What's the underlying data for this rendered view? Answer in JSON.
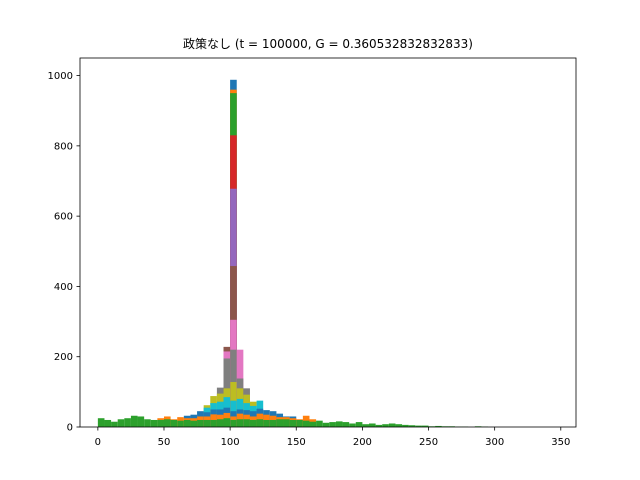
{
  "chart_data": {
    "type": "bar",
    "title": "政策なし (t = 100000, G = 0.360532832832833)",
    "xlabel": "",
    "ylabel": "",
    "xlim": [
      -13.5,
      361.5
    ],
    "ylim": [
      0,
      1050
    ],
    "xticks": [
      0,
      50,
      100,
      150,
      200,
      250,
      300,
      350
    ],
    "yticks": [
      0,
      200,
      400,
      600,
      800,
      1000
    ],
    "grid": false,
    "legend": "none",
    "bin_width": 5,
    "stacked_hist": [
      {
        "x": 100,
        "top": 988,
        "color": "#1f77b4"
      },
      {
        "x": 100,
        "top": 960,
        "color": "#ff7f0e"
      },
      {
        "x": 100,
        "top": 950,
        "color": "#2ca02c"
      },
      {
        "x": 100,
        "top": 830,
        "color": "#d62728"
      },
      {
        "x": 100,
        "top": 678,
        "color": "#9467bd"
      },
      {
        "x": 100,
        "top": 458,
        "color": "#8c564b"
      },
      {
        "x": 100,
        "top": 305,
        "color": "#e377c2"
      },
      {
        "x": 100,
        "top": 220,
        "color": "#7f7f7f"
      },
      {
        "x": 100,
        "top": 128,
        "color": "#bcbd22"
      },
      {
        "x": 100,
        "top": 75,
        "color": "#17becf"
      },
      {
        "x": 100,
        "top": 45,
        "color": "#1f77b4"
      },
      {
        "x": 100,
        "top": 30,
        "color": "#ff7f0e"
      },
      {
        "x": 100,
        "top": 20,
        "color": "#2ca02c"
      },
      {
        "x": 95,
        "top": 228,
        "color": "#8c564b"
      },
      {
        "x": 95,
        "top": 215,
        "color": "#e377c2"
      },
      {
        "x": 95,
        "top": 195,
        "color": "#7f7f7f"
      },
      {
        "x": 95,
        "top": 110,
        "color": "#bcbd22"
      },
      {
        "x": 95,
        "top": 85,
        "color": "#17becf"
      },
      {
        "x": 95,
        "top": 55,
        "color": "#1f77b4"
      },
      {
        "x": 95,
        "top": 40,
        "color": "#ff7f0e"
      },
      {
        "x": 95,
        "top": 25,
        "color": "#2ca02c"
      },
      {
        "x": 105,
        "top": 220,
        "color": "#e377c2"
      },
      {
        "x": 105,
        "top": 138,
        "color": "#7f7f7f"
      },
      {
        "x": 105,
        "top": 110,
        "color": "#bcbd22"
      },
      {
        "x": 105,
        "top": 80,
        "color": "#17becf"
      },
      {
        "x": 105,
        "top": 50,
        "color": "#1f77b4"
      },
      {
        "x": 105,
        "top": 38,
        "color": "#ff7f0e"
      },
      {
        "x": 105,
        "top": 22,
        "color": "#2ca02c"
      },
      {
        "x": 90,
        "top": 112,
        "color": "#7f7f7f"
      },
      {
        "x": 90,
        "top": 95,
        "color": "#bcbd22"
      },
      {
        "x": 90,
        "top": 72,
        "color": "#17becf"
      },
      {
        "x": 90,
        "top": 50,
        "color": "#1f77b4"
      },
      {
        "x": 90,
        "top": 35,
        "color": "#ff7f0e"
      },
      {
        "x": 90,
        "top": 22,
        "color": "#2ca02c"
      },
      {
        "x": 110,
        "top": 110,
        "color": "#7f7f7f"
      },
      {
        "x": 110,
        "top": 92,
        "color": "#bcbd22"
      },
      {
        "x": 110,
        "top": 68,
        "color": "#17becf"
      },
      {
        "x": 110,
        "top": 48,
        "color": "#1f77b4"
      },
      {
        "x": 110,
        "top": 35,
        "color": "#ff7f0e"
      },
      {
        "x": 110,
        "top": 22,
        "color": "#2ca02c"
      },
      {
        "x": 85,
        "top": 88,
        "color": "#bcbd22"
      },
      {
        "x": 85,
        "top": 68,
        "color": "#17becf"
      },
      {
        "x": 85,
        "top": 50,
        "color": "#1f77b4"
      },
      {
        "x": 85,
        "top": 36,
        "color": "#ff7f0e"
      },
      {
        "x": 85,
        "top": 20,
        "color": "#2ca02c"
      },
      {
        "x": 115,
        "top": 72,
        "color": "#bcbd22"
      },
      {
        "x": 115,
        "top": 60,
        "color": "#17becf"
      },
      {
        "x": 115,
        "top": 45,
        "color": "#1f77b4"
      },
      {
        "x": 115,
        "top": 30,
        "color": "#ff7f0e"
      },
      {
        "x": 115,
        "top": 20,
        "color": "#2ca02c"
      },
      {
        "x": 80,
        "top": 62,
        "color": "#bcbd22"
      },
      {
        "x": 80,
        "top": 55,
        "color": "#17becf"
      },
      {
        "x": 80,
        "top": 42,
        "color": "#1f77b4"
      },
      {
        "x": 80,
        "top": 30,
        "color": "#ff7f0e"
      },
      {
        "x": 80,
        "top": 20,
        "color": "#2ca02c"
      },
      {
        "x": 120,
        "top": 75,
        "color": "#17becf"
      },
      {
        "x": 120,
        "top": 52,
        "color": "#1f77b4"
      },
      {
        "x": 120,
        "top": 38,
        "color": "#ff7f0e"
      },
      {
        "x": 120,
        "top": 22,
        "color": "#2ca02c"
      },
      {
        "x": 75,
        "top": 45,
        "color": "#1f77b4"
      },
      {
        "x": 75,
        "top": 30,
        "color": "#ff7f0e"
      },
      {
        "x": 75,
        "top": 20,
        "color": "#2ca02c"
      },
      {
        "x": 125,
        "top": 48,
        "color": "#1f77b4"
      },
      {
        "x": 125,
        "top": 35,
        "color": "#ff7f0e"
      },
      {
        "x": 125,
        "top": 20,
        "color": "#2ca02c"
      },
      {
        "x": 130,
        "top": 45,
        "color": "#1f77b4"
      },
      {
        "x": 130,
        "top": 32,
        "color": "#ff7f0e"
      },
      {
        "x": 130,
        "top": 20,
        "color": "#2ca02c"
      },
      {
        "x": 70,
        "top": 35,
        "color": "#1f77b4"
      },
      {
        "x": 70,
        "top": 25,
        "color": "#ff7f0e"
      },
      {
        "x": 70,
        "top": 18,
        "color": "#2ca02c"
      },
      {
        "x": 135,
        "top": 38,
        "color": "#1f77b4"
      },
      {
        "x": 135,
        "top": 28,
        "color": "#ff7f0e"
      },
      {
        "x": 135,
        "top": 22,
        "color": "#2ca02c"
      },
      {
        "x": 140,
        "top": 30,
        "color": "#1f77b4"
      },
      {
        "x": 140,
        "top": 28,
        "color": "#ff7f0e"
      },
      {
        "x": 140,
        "top": 22,
        "color": "#2ca02c"
      },
      {
        "x": 145,
        "top": 30,
        "color": "#1f77b4"
      },
      {
        "x": 145,
        "top": 25,
        "color": "#ff7f0e"
      },
      {
        "x": 145,
        "top": 20,
        "color": "#2ca02c"
      },
      {
        "x": 150,
        "top": 22,
        "color": "#ff7f0e"
      },
      {
        "x": 150,
        "top": 20,
        "color": "#2ca02c"
      },
      {
        "x": 155,
        "top": 32,
        "color": "#ff7f0e"
      },
      {
        "x": 155,
        "top": 18,
        "color": "#2ca02c"
      },
      {
        "x": 160,
        "top": 22,
        "color": "#ff7f0e"
      },
      {
        "x": 160,
        "top": 15,
        "color": "#2ca02c"
      },
      {
        "x": 65,
        "top": 32,
        "color": "#1f77b4"
      },
      {
        "x": 65,
        "top": 25,
        "color": "#ff7f0e"
      },
      {
        "x": 65,
        "top": 20,
        "color": "#2ca02c"
      },
      {
        "x": 60,
        "top": 28,
        "color": "#ff7f0e"
      },
      {
        "x": 60,
        "top": 18,
        "color": "#2ca02c"
      },
      {
        "x": 55,
        "top": 22,
        "color": "#ff7f0e"
      },
      {
        "x": 55,
        "top": 20,
        "color": "#2ca02c"
      },
      {
        "x": 50,
        "top": 30,
        "color": "#ff7f0e"
      },
      {
        "x": 50,
        "top": 22,
        "color": "#2ca02c"
      },
      {
        "x": 45,
        "top": 25,
        "color": "#ff7f0e"
      },
      {
        "x": 45,
        "top": 20,
        "color": "#2ca02c"
      },
      {
        "x": 0,
        "top": 25,
        "color": "#2ca02c"
      },
      {
        "x": 5,
        "top": 20,
        "color": "#2ca02c"
      },
      {
        "x": 10,
        "top": 15,
        "color": "#2ca02c"
      },
      {
        "x": 15,
        "top": 22,
        "color": "#2ca02c"
      },
      {
        "x": 20,
        "top": 25,
        "color": "#2ca02c"
      },
      {
        "x": 25,
        "top": 32,
        "color": "#2ca02c"
      },
      {
        "x": 30,
        "top": 30,
        "color": "#2ca02c"
      },
      {
        "x": 35,
        "top": 22,
        "color": "#2ca02c"
      },
      {
        "x": 40,
        "top": 20,
        "color": "#2ca02c"
      },
      {
        "x": 165,
        "top": 18,
        "color": "#2ca02c"
      },
      {
        "x": 170,
        "top": 12,
        "color": "#2ca02c"
      },
      {
        "x": 175,
        "top": 14,
        "color": "#2ca02c"
      },
      {
        "x": 180,
        "top": 16,
        "color": "#2ca02c"
      },
      {
        "x": 185,
        "top": 14,
        "color": "#2ca02c"
      },
      {
        "x": 190,
        "top": 10,
        "color": "#2ca02c"
      },
      {
        "x": 195,
        "top": 14,
        "color": "#2ca02c"
      },
      {
        "x": 200,
        "top": 8,
        "color": "#2ca02c"
      },
      {
        "x": 205,
        "top": 10,
        "color": "#2ca02c"
      },
      {
        "x": 210,
        "top": 6,
        "color": "#2ca02c"
      },
      {
        "x": 215,
        "top": 8,
        "color": "#2ca02c"
      },
      {
        "x": 220,
        "top": 10,
        "color": "#2ca02c"
      },
      {
        "x": 225,
        "top": 8,
        "color": "#2ca02c"
      },
      {
        "x": 230,
        "top": 6,
        "color": "#2ca02c"
      },
      {
        "x": 235,
        "top": 5,
        "color": "#2ca02c"
      },
      {
        "x": 240,
        "top": 4,
        "color": "#2ca02c"
      },
      {
        "x": 245,
        "top": 4,
        "color": "#2ca02c"
      },
      {
        "x": 250,
        "top": 2,
        "color": "#2ca02c"
      },
      {
        "x": 255,
        "top": 3,
        "color": "#2ca02c"
      },
      {
        "x": 260,
        "top": 2,
        "color": "#2ca02c"
      },
      {
        "x": 265,
        "top": 2,
        "color": "#2ca02c"
      },
      {
        "x": 270,
        "top": 1,
        "color": "#2ca02c"
      },
      {
        "x": 275,
        "top": 1,
        "color": "#2ca02c"
      },
      {
        "x": 285,
        "top": 2,
        "color": "#2ca02c"
      },
      {
        "x": 290,
        "top": 1,
        "color": "#2ca02c"
      }
    ]
  }
}
